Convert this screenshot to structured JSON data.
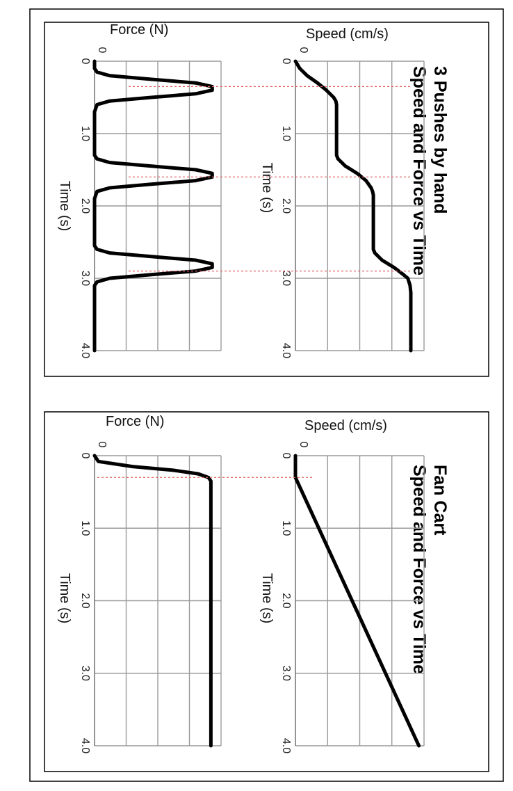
{
  "chart_data": [
    {
      "type": "line",
      "title": "3 Pushes by hand\nSpeed and Force vs Time",
      "title_lines": [
        "3 Pushes by hand",
        "Speed and Force vs Time"
      ],
      "panels": [
        {
          "id": "speed",
          "ylabel": "Speed (cm/s)",
          "xlabel": "Time (s)",
          "xlim": [
            0,
            4.0
          ],
          "y_gridlines": 4,
          "x_ticks": [
            "0",
            "1.0",
            "2.0",
            "3.0",
            "4.0"
          ],
          "series": [
            {
              "x": [
                0,
                0.1,
                0.2,
                0.3,
                0.4,
                0.5,
                0.55,
                0.6,
                1.3,
                1.35,
                1.45,
                1.55,
                1.65,
                1.75,
                1.8,
                1.85,
                2.6,
                2.65,
                2.75,
                2.85,
                2.95,
                3.0,
                3.1,
                3.2,
                4.0
              ],
              "y": [
                0,
                0.06,
                0.16,
                0.3,
                0.42,
                0.52,
                0.55,
                0.56,
                0.56,
                0.58,
                0.68,
                0.84,
                0.96,
                1.03,
                1.05,
                1.06,
                1.06,
                1.08,
                1.18,
                1.34,
                1.47,
                1.53,
                1.56,
                1.57,
                1.57
              ]
            }
          ]
        },
        {
          "id": "force",
          "ylabel": "Force (N)",
          "y_zero_label": "0",
          "xlabel": "Time (s)",
          "xlim": [
            0,
            4.0
          ],
          "y_gridlines": 4,
          "x_ticks": [
            "0",
            "1.0",
            "2.0",
            "3.0",
            "4.0"
          ],
          "series": [
            {
              "x": [
                0,
                0.1,
                0.15,
                0.2,
                0.25,
                0.3,
                0.35,
                0.4,
                0.45,
                0.5,
                0.55,
                0.6,
                0.7,
                1.3,
                1.35,
                1.4,
                1.45,
                1.5,
                1.55,
                1.6,
                1.65,
                1.7,
                1.75,
                1.8,
                1.9,
                2.55,
                2.6,
                2.65,
                2.7,
                2.75,
                2.8,
                2.85,
                2.9,
                2.95,
                3.0,
                3.05,
                3.1,
                3.2,
                4.0
              ],
              "y": [
                0,
                0.0,
                0.02,
                0.12,
                0.45,
                0.8,
                0.93,
                0.93,
                0.8,
                0.45,
                0.12,
                0.02,
                0,
                0,
                0.02,
                0.12,
                0.45,
                0.8,
                0.93,
                0.93,
                0.8,
                0.45,
                0.12,
                0.02,
                0,
                0,
                0.02,
                0.12,
                0.45,
                0.8,
                0.93,
                0.93,
                0.8,
                0.45,
                0.12,
                0.02,
                0,
                0,
                0
              ]
            }
          ]
        }
      ],
      "guide_times": [
        0.35,
        1.6,
        2.9
      ]
    },
    {
      "type": "line",
      "title": "Fan Cart\nSpeed and Force vs Time",
      "title_lines": [
        "Fan Cart",
        "Speed and Force vs Time"
      ],
      "panels": [
        {
          "id": "speed",
          "ylabel": "Speed (cm/s)",
          "xlabel": "Time (s)",
          "xlim": [
            0,
            4.0
          ],
          "y_gridlines": 4,
          "x_ticks": [
            "0",
            "1.0",
            "2.0",
            "3.0",
            "4.0"
          ],
          "series": [
            {
              "x": [
                0,
                0.3,
                4.0
              ],
              "y": [
                0,
                0,
                1.68
              ]
            }
          ]
        },
        {
          "id": "force",
          "ylabel": "Force (N)",
          "y_zero_label": "0",
          "xlabel": "Time (s)",
          "xlim": [
            0,
            4.0
          ],
          "y_gridlines": 4,
          "x_ticks": [
            "0",
            "1.0",
            "2.0",
            "3.0",
            "4.0"
          ],
          "series": [
            {
              "x": [
                0,
                0.08,
                0.15,
                0.2,
                0.25,
                0.3,
                0.35,
                0.4,
                4.0
              ],
              "y": [
                0,
                0.03,
                0.3,
                0.62,
                0.82,
                0.9,
                0.92,
                0.92,
                0.92
              ]
            }
          ]
        }
      ],
      "guide_times": [
        0.3
      ]
    }
  ]
}
